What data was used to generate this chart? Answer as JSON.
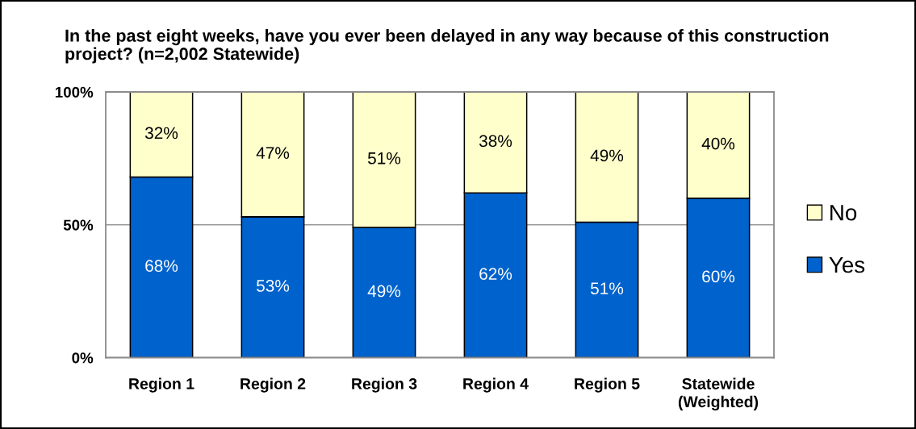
{
  "chart_data": {
    "type": "bar",
    "title": "In the past eight weeks, have you ever been delayed in any way because of this construction project? (n=2,002 Statewide)",
    "categories": [
      "Region 1",
      "Region 2",
      "Region 3",
      "Region 4",
      "Region 5",
      "Statewide (Weighted)"
    ],
    "stacked": true,
    "series": [
      {
        "name": "Yes",
        "color": "#0062cc",
        "values": [
          68,
          53,
          49,
          62,
          51,
          60
        ],
        "value_labels": [
          "68%",
          "53%",
          "49%",
          "62%",
          "51%",
          "60%"
        ]
      },
      {
        "name": "No",
        "color": "#ffffcc",
        "values": [
          32,
          47,
          51,
          38,
          49,
          40
        ],
        "value_labels": [
          "32%",
          "47%",
          "51%",
          "38%",
          "49%",
          "40%"
        ]
      }
    ],
    "ylim": [
      0,
      100
    ],
    "yticks": [
      {
        "value": 0,
        "label": "0%"
      },
      {
        "value": 50,
        "label": "50%"
      },
      {
        "value": 100,
        "label": "100%"
      }
    ],
    "grid": "y",
    "legend": "right"
  }
}
